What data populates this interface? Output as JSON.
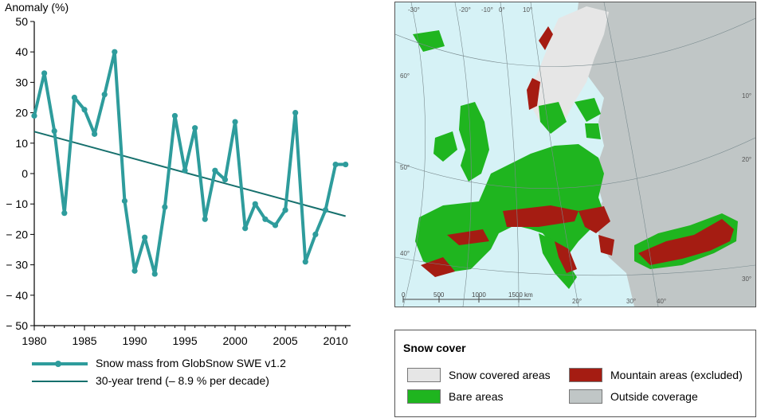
{
  "chart_data": {
    "type": "line",
    "title": "",
    "ylabel": "Anomaly (%)",
    "xlabel": "",
    "xlim": [
      1980,
      2011.5
    ],
    "ylim": [
      -50,
      50
    ],
    "x_ticks": [
      1980,
      1985,
      1990,
      1995,
      2000,
      2005,
      2010
    ],
    "y_ticks": [
      50,
      40,
      30,
      20,
      10,
      0,
      -10,
      -20,
      -30,
      -40,
      -50
    ],
    "y_tick_labels": [
      "50",
      "40",
      "30",
      "20",
      "10",
      "0",
      "− 10",
      "− 20",
      "− 30",
      "− 40",
      "− 50"
    ],
    "grid": false,
    "series": [
      {
        "name": "Snow mass from GlobSnow SWE v1.2",
        "color": "#2e9c9c",
        "x": [
          1980,
          1981,
          1982,
          1983,
          1984,
          1985,
          1986,
          1987,
          1988,
          1989,
          1990,
          1991,
          1992,
          1993,
          1994,
          1995,
          1996,
          1997,
          1998,
          1999,
          2000,
          2001,
          2002,
          2003,
          2004,
          2005,
          2006,
          2007,
          2008,
          2009,
          2010,
          2011
        ],
        "values": [
          19,
          33,
          14,
          -13,
          25,
          21,
          13,
          26,
          40,
          -9,
          -32,
          -21,
          -33,
          -11,
          19,
          1,
          15,
          -15,
          1,
          -2,
          17,
          -18,
          -10,
          -15,
          -17,
          -12,
          20,
          -29,
          -20,
          -12,
          3,
          3
        ]
      },
      {
        "name": "30-year trend (– 8.9 % per decade)",
        "color": "#16706d",
        "x": [
          1980,
          2011
        ],
        "values": [
          13.8,
          -14.0
        ]
      }
    ]
  },
  "map": {
    "graticule_labels": [
      "-30°",
      "-20°",
      "-10°",
      "0°",
      "10°",
      "20°",
      "30°",
      "40°",
      "60°",
      "50°",
      "40°",
      "30°",
      "20°",
      "10°"
    ],
    "scale_labels": [
      "0",
      "500",
      "1000",
      "1500 km"
    ],
    "colors": {
      "sea": "#d6f2f6",
      "bare": "#1fb51f",
      "snow": "#e6e6e6",
      "mountain": "#a51c12",
      "outside": "#c0c6c6"
    }
  },
  "map_legend": {
    "title": "Snow cover",
    "items": [
      {
        "label": "Snow covered areas",
        "color": "#e6e6e6"
      },
      {
        "label": "Mountain areas (excluded)",
        "color": "#a51c12"
      },
      {
        "label": "Bare areas",
        "color": "#1fb51f"
      },
      {
        "label": "Outside coverage",
        "color": "#c0c6c6"
      }
    ]
  }
}
